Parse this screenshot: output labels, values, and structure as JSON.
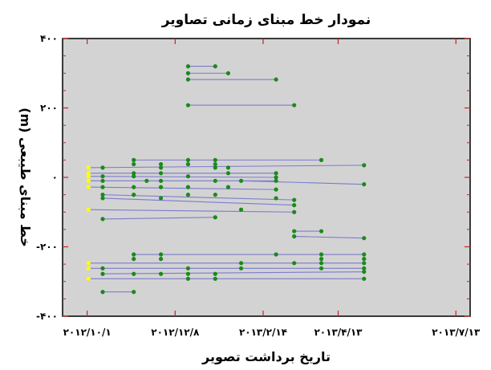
{
  "chart_data": {
    "type": "scatter",
    "title": "نمودار خط مبنای زمانی تصاویر",
    "xlabel": "تاریخ برداشت تصویر",
    "ylabel": "خط مبنای طیبعی (m)",
    "x_tick_labels": [
      "۲۰۱۲/۱۰/۱",
      "۲۰۱۲/۱۲/۸",
      "۲۰۱۳/۲/۱۴",
      "۲۰۱۳/۴/۱۳",
      "۲۰۱۳/۷/۱۳"
    ],
    "x_tick_dates": [
      "2012-10-01",
      "2012-12-08",
      "2013-02-14",
      "2013-04-13",
      "2013-07-13"
    ],
    "y_tick_labels": [
      "۴۰۰",
      "۲۰۰",
      "۰",
      "-۲۰۰",
      "-۴۰۰"
    ],
    "y_tick_values": [
      400,
      200,
      0,
      -200,
      -400
    ],
    "xlim": [
      "2012-09-12",
      "2013-07-24"
    ],
    "ylim": [
      -400,
      400
    ],
    "grid": false,
    "background_color": "#d3d3d3",
    "colors": {
      "master_point": "#ffff00",
      "slave_point": "#1a8a1a",
      "connection_line": "#7b7bd0",
      "tick_mark": "#cc2020"
    },
    "master_points": [
      {
        "x": "2012-10-02",
        "y": 28
      },
      {
        "x": "2012-10-02",
        "y": 12
      },
      {
        "x": "2012-10-02",
        "y": 3
      },
      {
        "x": "2012-10-02",
        "y": -10
      },
      {
        "x": "2012-10-02",
        "y": -28
      },
      {
        "x": "2012-10-02",
        "y": -93
      },
      {
        "x": "2012-10-02",
        "y": -247
      },
      {
        "x": "2012-10-02",
        "y": -262
      },
      {
        "x": "2012-10-02",
        "y": -292
      }
    ],
    "segments": [
      {
        "x1": "2012-12-18",
        "y1": 320,
        "x2": "2013-01-08",
        "y2": 320
      },
      {
        "x1": "2012-12-18",
        "y1": 300,
        "x2": "2013-01-18",
        "y2": 300
      },
      {
        "x1": "2012-12-18",
        "y1": 282,
        "x2": "2013-02-24",
        "y2": 282
      },
      {
        "x1": "2012-12-18",
        "y1": 208,
        "x2": "2013-03-10",
        "y2": 208
      },
      {
        "x1": "2012-11-06",
        "y1": 50,
        "x2": "2013-03-31",
        "y2": 50
      },
      {
        "x1": "2012-10-02",
        "y1": 28,
        "x2": "2013-05-03",
        "y2": 35
      },
      {
        "x1": "2012-10-02",
        "y1": 12,
        "x2": "2013-02-24",
        "y2": 12
      },
      {
        "x1": "2012-10-02",
        "y1": 3,
        "x2": "2013-02-24",
        "y2": 0
      },
      {
        "x1": "2012-10-02",
        "y1": -10,
        "x2": "2013-02-24",
        "y2": -10
      },
      {
        "x1": "2012-10-02",
        "y1": -28,
        "x2": "2013-02-24",
        "y2": -35
      },
      {
        "x1": "2012-10-13",
        "y1": -50,
        "x2": "2013-03-10",
        "y2": -65
      },
      {
        "x1": "2012-10-13",
        "y1": -60,
        "x2": "2013-03-10",
        "y2": -80
      },
      {
        "x1": "2012-10-02",
        "y1": -93,
        "x2": "2013-03-10",
        "y2": -100
      },
      {
        "x1": "2012-10-13",
        "y1": -120,
        "x2": "2013-01-08",
        "y2": -115
      },
      {
        "x1": "2013-01-28",
        "y1": -10,
        "x2": "2013-05-03",
        "y2": -20
      },
      {
        "x1": "2013-03-10",
        "y1": -155,
        "x2": "2013-03-31",
        "y2": -155
      },
      {
        "x1": "2013-03-10",
        "y1": -170,
        "x2": "2013-05-03",
        "y2": -175
      },
      {
        "x1": "2012-11-06",
        "y1": -222,
        "x2": "2013-05-03",
        "y2": -222
      },
      {
        "x1": "2012-10-02",
        "y1": -247,
        "x2": "2013-05-03",
        "y2": -247
      },
      {
        "x1": "2012-10-02",
        "y1": -262,
        "x2": "2013-05-03",
        "y2": -262
      },
      {
        "x1": "2012-10-13",
        "y1": -278,
        "x2": "2013-05-03",
        "y2": -272
      },
      {
        "x1": "2012-10-02",
        "y1": -292,
        "x2": "2013-05-03",
        "y2": -292
      },
      {
        "x1": "2012-10-13",
        "y1": -330,
        "x2": "2012-11-06",
        "y2": -330
      }
    ],
    "slave_points": [
      {
        "x": "2013-01-08",
        "y": 320
      },
      {
        "x": "2012-12-18",
        "y": 320
      },
      {
        "x": "2012-12-18",
        "y": 300
      },
      {
        "x": "2013-01-18",
        "y": 300
      },
      {
        "x": "2012-12-18",
        "y": 282
      },
      {
        "x": "2013-02-24",
        "y": 282
      },
      {
        "x": "2012-12-18",
        "y": 208
      },
      {
        "x": "2013-03-10",
        "y": 208
      },
      {
        "x": "2012-11-06",
        "y": 50
      },
      {
        "x": "2012-12-18",
        "y": 50
      },
      {
        "x": "2013-01-08",
        "y": 50
      },
      {
        "x": "2013-03-31",
        "y": 50
      },
      {
        "x": "2012-11-06",
        "y": 38
      },
      {
        "x": "2012-11-27",
        "y": 38
      },
      {
        "x": "2012-12-18",
        "y": 38
      },
      {
        "x": "2013-01-08",
        "y": 38
      },
      {
        "x": "2013-05-03",
        "y": 35
      },
      {
        "x": "2012-10-13",
        "y": 28
      },
      {
        "x": "2012-11-27",
        "y": 28
      },
      {
        "x": "2013-01-08",
        "y": 28
      },
      {
        "x": "2013-01-18",
        "y": 28
      },
      {
        "x": "2012-11-06",
        "y": 12
      },
      {
        "x": "2012-11-27",
        "y": 12
      },
      {
        "x": "2013-01-18",
        "y": 12
      },
      {
        "x": "2013-02-24",
        "y": 12
      },
      {
        "x": "2012-10-13",
        "y": 3
      },
      {
        "x": "2012-11-06",
        "y": 3
      },
      {
        "x": "2012-12-18",
        "y": 3
      },
      {
        "x": "2013-02-24",
        "y": 0
      },
      {
        "x": "2012-10-13",
        "y": -10
      },
      {
        "x": "2012-11-16",
        "y": -10
      },
      {
        "x": "2012-11-27",
        "y": -10
      },
      {
        "x": "2013-01-08",
        "y": -10
      },
      {
        "x": "2013-01-28",
        "y": -10
      },
      {
        "x": "2013-02-24",
        "y": -10
      },
      {
        "x": "2012-10-13",
        "y": -28
      },
      {
        "x": "2012-11-06",
        "y": -28
      },
      {
        "x": "2012-11-27",
        "y": -28
      },
      {
        "x": "2012-12-18",
        "y": -28
      },
      {
        "x": "2013-01-18",
        "y": -28
      },
      {
        "x": "2013-02-24",
        "y": -35
      },
      {
        "x": "2012-10-13",
        "y": -50
      },
      {
        "x": "2012-11-06",
        "y": -50
      },
      {
        "x": "2012-12-18",
        "y": -50
      },
      {
        "x": "2013-01-08",
        "y": -50
      },
      {
        "x": "2012-10-13",
        "y": -60
      },
      {
        "x": "2012-11-27",
        "y": -60
      },
      {
        "x": "2013-02-24",
        "y": -60
      },
      {
        "x": "2013-03-10",
        "y": -65
      },
      {
        "x": "2013-03-10",
        "y": -80
      },
      {
        "x": "2013-01-28",
        "y": -93
      },
      {
        "x": "2013-03-10",
        "y": -100
      },
      {
        "x": "2012-10-13",
        "y": -120
      },
      {
        "x": "2013-01-08",
        "y": -115
      },
      {
        "x": "2013-05-03",
        "y": -20
      },
      {
        "x": "2013-03-10",
        "y": -155
      },
      {
        "x": "2013-03-31",
        "y": -155
      },
      {
        "x": "2013-03-10",
        "y": -170
      },
      {
        "x": "2013-05-03",
        "y": -175
      },
      {
        "x": "2012-11-06",
        "y": -222
      },
      {
        "x": "2012-11-27",
        "y": -222
      },
      {
        "x": "2013-02-24",
        "y": -222
      },
      {
        "x": "2013-03-31",
        "y": -222
      },
      {
        "x": "2013-05-03",
        "y": -222
      },
      {
        "x": "2012-11-06",
        "y": -235
      },
      {
        "x": "2012-11-27",
        "y": -235
      },
      {
        "x": "2013-03-31",
        "y": -235
      },
      {
        "x": "2013-05-03",
        "y": -235
      },
      {
        "x": "2013-01-28",
        "y": -247
      },
      {
        "x": "2013-03-10",
        "y": -247
      },
      {
        "x": "2013-03-31",
        "y": -247
      },
      {
        "x": "2013-05-03",
        "y": -247
      },
      {
        "x": "2012-10-13",
        "y": -262
      },
      {
        "x": "2012-12-18",
        "y": -262
      },
      {
        "x": "2013-01-28",
        "y": -262
      },
      {
        "x": "2013-03-31",
        "y": -262
      },
      {
        "x": "2013-05-03",
        "y": -262
      },
      {
        "x": "2012-10-13",
        "y": -278
      },
      {
        "x": "2012-11-06",
        "y": -278
      },
      {
        "x": "2012-11-27",
        "y": -278
      },
      {
        "x": "2012-12-18",
        "y": -278
      },
      {
        "x": "2013-01-08",
        "y": -278
      },
      {
        "x": "2013-05-03",
        "y": -272
      },
      {
        "x": "2012-12-18",
        "y": -292
      },
      {
        "x": "2013-01-08",
        "y": -292
      },
      {
        "x": "2013-05-03",
        "y": -292
      },
      {
        "x": "2012-10-13",
        "y": -330
      },
      {
        "x": "2012-11-06",
        "y": -330
      }
    ]
  }
}
